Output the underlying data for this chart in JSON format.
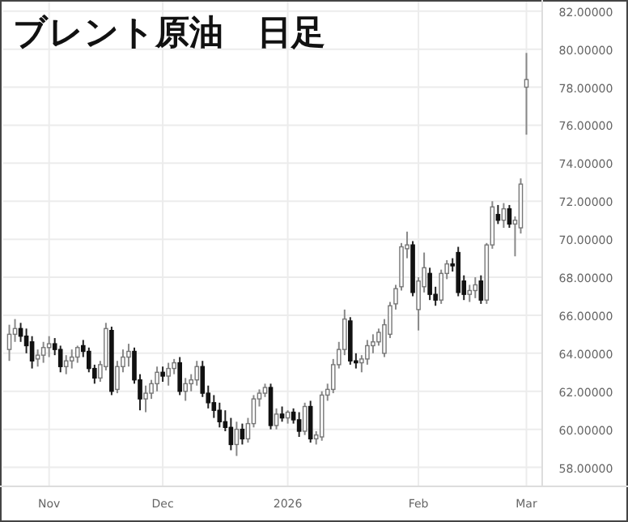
{
  "chart_data": {
    "type": "candlestick",
    "title": "ブレント原油　日足",
    "categories": [
      null,
      null,
      null,
      null,
      null,
      null,
      null,
      "Nov",
      null,
      null,
      null,
      null,
      null,
      null,
      null,
      null,
      null,
      null,
      null,
      null,
      null,
      null,
      null,
      null,
      null,
      null,
      null,
      "Dec",
      null,
      null,
      null,
      null,
      null,
      null,
      null,
      null,
      null,
      null,
      null,
      null,
      null,
      null,
      null,
      null,
      null,
      null,
      null,
      null,
      null,
      "2026",
      null,
      null,
      null,
      null,
      null,
      null,
      null,
      null,
      null,
      null,
      null,
      null,
      null,
      null,
      null,
      null,
      null,
      null,
      null,
      null,
      null,
      null,
      "Feb",
      null,
      null,
      null,
      null,
      null,
      null,
      null,
      null,
      null,
      null,
      null,
      null,
      null,
      null,
      null,
      null,
      null,
      null,
      "Mar"
    ],
    "ohlc": [
      [
        64.2,
        65.5,
        63.6,
        65.0
      ],
      [
        65.0,
        65.8,
        64.6,
        65.3
      ],
      [
        65.3,
        65.6,
        64.6,
        64.9
      ],
      [
        64.9,
        65.3,
        64.0,
        64.4
      ],
      [
        64.6,
        64.9,
        63.2,
        63.6
      ],
      [
        63.7,
        64.2,
        63.3,
        63.9
      ],
      [
        63.9,
        64.6,
        63.5,
        64.3
      ],
      [
        64.3,
        64.9,
        63.8,
        64.5
      ],
      [
        64.5,
        64.8,
        63.9,
        64.2
      ],
      [
        64.2,
        64.4,
        63.0,
        63.3
      ],
      [
        63.3,
        63.9,
        62.9,
        63.6
      ],
      [
        63.6,
        64.2,
        63.2,
        63.8
      ],
      [
        63.8,
        64.4,
        63.5,
        64.3
      ],
      [
        64.4,
        64.7,
        63.8,
        64.1
      ],
      [
        64.1,
        64.3,
        63.0,
        63.2
      ],
      [
        63.2,
        63.4,
        62.4,
        62.7
      ],
      [
        62.7,
        63.6,
        62.5,
        63.4
      ],
      [
        63.3,
        65.6,
        63.1,
        65.3
      ],
      [
        65.2,
        65.4,
        61.8,
        62.0
      ],
      [
        62.1,
        63.6,
        61.9,
        63.3
      ],
      [
        63.3,
        64.2,
        63.0,
        63.8
      ],
      [
        63.8,
        64.5,
        63.3,
        64.1
      ],
      [
        64.1,
        64.3,
        62.4,
        62.6
      ],
      [
        62.6,
        62.9,
        61.0,
        61.6
      ],
      [
        61.6,
        62.3,
        60.9,
        61.9
      ],
      [
        61.9,
        62.6,
        61.6,
        62.4
      ],
      [
        62.4,
        63.3,
        62.0,
        63.0
      ],
      [
        63.0,
        63.3,
        62.5,
        62.8
      ],
      [
        62.8,
        63.5,
        62.3,
        63.2
      ],
      [
        63.2,
        63.7,
        62.9,
        63.5
      ],
      [
        63.5,
        63.8,
        61.8,
        62.0
      ],
      [
        62.0,
        62.7,
        61.5,
        62.4
      ],
      [
        62.4,
        62.9,
        62.0,
        62.6
      ],
      [
        62.6,
        63.6,
        62.3,
        63.3
      ],
      [
        63.3,
        63.6,
        61.7,
        61.9
      ],
      [
        61.9,
        62.3,
        61.1,
        61.4
      ],
      [
        61.4,
        61.8,
        60.6,
        61.0
      ],
      [
        61.0,
        61.4,
        60.1,
        60.4
      ],
      [
        60.4,
        61.0,
        59.9,
        60.1
      ],
      [
        60.1,
        60.6,
        58.9,
        59.2
      ],
      [
        59.2,
        60.4,
        58.6,
        60.0
      ],
      [
        60.0,
        60.3,
        59.2,
        59.5
      ],
      [
        59.5,
        60.6,
        59.3,
        60.3
      ],
      [
        60.3,
        61.8,
        60.1,
        61.6
      ],
      [
        61.6,
        62.1,
        61.2,
        61.9
      ],
      [
        61.9,
        62.4,
        61.7,
        62.2
      ],
      [
        62.2,
        62.4,
        60.0,
        60.2
      ],
      [
        60.2,
        61.1,
        60.0,
        60.8
      ],
      [
        60.8,
        61.2,
        60.4,
        60.6
      ],
      [
        60.6,
        61.0,
        60.3,
        60.9
      ],
      [
        60.9,
        61.1,
        60.3,
        60.5
      ],
      [
        60.5,
        60.9,
        59.6,
        59.9
      ],
      [
        59.9,
        61.4,
        59.7,
        61.2
      ],
      [
        61.2,
        61.5,
        59.3,
        59.5
      ],
      [
        59.5,
        59.9,
        59.2,
        59.7
      ],
      [
        59.6,
        62.0,
        59.4,
        61.8
      ],
      [
        61.8,
        62.4,
        61.5,
        62.1
      ],
      [
        62.1,
        63.7,
        61.9,
        63.4
      ],
      [
        63.4,
        64.6,
        63.2,
        64.2
      ],
      [
        64.2,
        66.3,
        63.9,
        65.8
      ],
      [
        65.7,
        65.9,
        63.4,
        63.6
      ],
      [
        63.6,
        64.0,
        63.2,
        63.5
      ],
      [
        63.5,
        63.9,
        63.0,
        63.7
      ],
      [
        63.7,
        64.7,
        63.4,
        64.4
      ],
      [
        64.4,
        65.0,
        64.0,
        64.6
      ],
      [
        64.6,
        65.3,
        64.4,
        65.1
      ],
      [
        64.0,
        65.8,
        63.8,
        65.5
      ],
      [
        65.0,
        66.7,
        64.8,
        66.5
      ],
      [
        66.6,
        67.6,
        66.3,
        67.4
      ],
      [
        67.5,
        69.8,
        67.3,
        69.6
      ],
      [
        69.5,
        70.4,
        69.0,
        69.7
      ],
      [
        69.7,
        69.9,
        67.0,
        67.2
      ],
      [
        66.3,
        68.0,
        65.2,
        67.8
      ],
      [
        67.5,
        69.3,
        67.2,
        68.5
      ],
      [
        68.2,
        68.5,
        66.8,
        67.1
      ],
      [
        67.1,
        67.5,
        66.5,
        66.8
      ],
      [
        66.8,
        68.4,
        66.6,
        68.2
      ],
      [
        68.2,
        68.9,
        67.9,
        68.7
      ],
      [
        68.7,
        69.0,
        68.3,
        68.6
      ],
      [
        69.3,
        69.6,
        67.0,
        67.2
      ],
      [
        67.8,
        68.1,
        66.8,
        67.1
      ],
      [
        67.1,
        67.6,
        66.7,
        67.3
      ],
      [
        67.3,
        68.0,
        66.9,
        67.6
      ],
      [
        67.8,
        68.1,
        66.6,
        66.8
      ],
      [
        66.8,
        69.8,
        66.6,
        69.7
      ],
      [
        69.7,
        72.0,
        69.5,
        71.7
      ],
      [
        71.3,
        71.8,
        70.8,
        71.0
      ],
      [
        71.0,
        71.9,
        70.6,
        71.6
      ],
      [
        71.6,
        71.8,
        70.6,
        70.8
      ],
      [
        70.8,
        71.2,
        69.1,
        71.0
      ],
      [
        70.6,
        73.2,
        70.3,
        72.9
      ],
      [
        78.0,
        79.8,
        75.5,
        78.4
      ]
    ],
    "ylim": [
      57,
      82.5
    ],
    "yticks": [
      {
        "value": 58,
        "label": "58.00000"
      },
      {
        "value": 60,
        "label": "60.00000"
      },
      {
        "value": 62,
        "label": "62.00000"
      },
      {
        "value": 64,
        "label": "64.00000"
      },
      {
        "value": 66,
        "label": "66.00000"
      },
      {
        "value": 68,
        "label": "68.00000"
      },
      {
        "value": 70,
        "label": "70.00000"
      },
      {
        "value": 72,
        "label": "72.00000"
      },
      {
        "value": 74,
        "label": "74.00000"
      },
      {
        "value": 76,
        "label": "76.00000"
      },
      {
        "value": 78,
        "label": "78.00000"
      },
      {
        "value": 80,
        "label": "80.00000"
      },
      {
        "value": 82,
        "label": "82.00000"
      }
    ],
    "grid": true
  }
}
